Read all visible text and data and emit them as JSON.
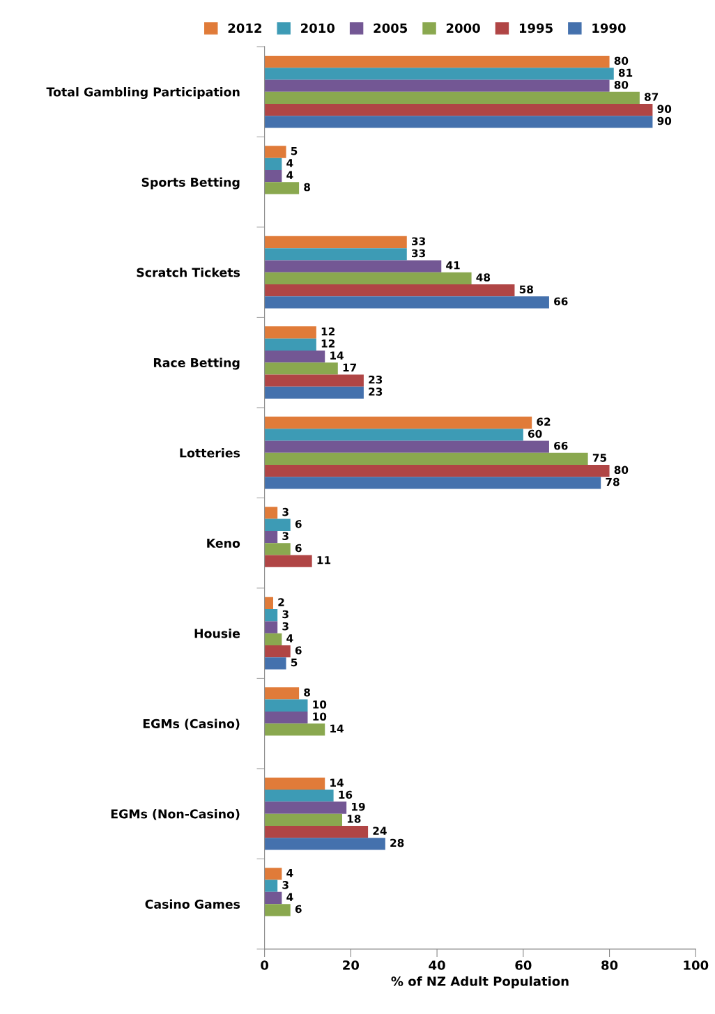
{
  "chart_data": {
    "type": "bar",
    "orientation": "horizontal",
    "xlabel": "% of NZ Adult Population",
    "categories": [
      "Total Gambling Participation",
      "Sports Betting",
      "Scratch Tickets",
      "Race Betting",
      "Lotteries",
      "Keno",
      "Housie",
      "EGMs (Casino)",
      "EGMs (Non-Casino)",
      "Casino Games"
    ],
    "series": [
      {
        "name": "2012",
        "color": "#e07b39",
        "values": [
          80,
          5,
          33,
          12,
          62,
          3,
          2,
          8,
          14,
          4
        ]
      },
      {
        "name": "2010",
        "color": "#3d9bb5",
        "values": [
          81,
          4,
          33,
          12,
          60,
          6,
          3,
          10,
          16,
          3
        ]
      },
      {
        "name": "2005",
        "color": "#735794",
        "values": [
          80,
          4,
          41,
          14,
          66,
          3,
          3,
          10,
          19,
          4
        ]
      },
      {
        "name": "2000",
        "color": "#8aa84f",
        "values": [
          87,
          8,
          48,
          17,
          75,
          6,
          4,
          14,
          18,
          6
        ]
      },
      {
        "name": "1995",
        "color": "#b04545",
        "values": [
          90,
          null,
          58,
          23,
          80,
          11,
          6,
          null,
          24,
          null
        ]
      },
      {
        "name": "1990",
        "color": "#4471ad",
        "values": [
          90,
          null,
          66,
          23,
          78,
          null,
          5,
          null,
          28,
          null
        ]
      }
    ],
    "xlim": [
      0,
      100
    ],
    "xticks": [
      0,
      20,
      40,
      60,
      80,
      100
    ],
    "grid": false,
    "legend": "top",
    "data_labels": true
  }
}
